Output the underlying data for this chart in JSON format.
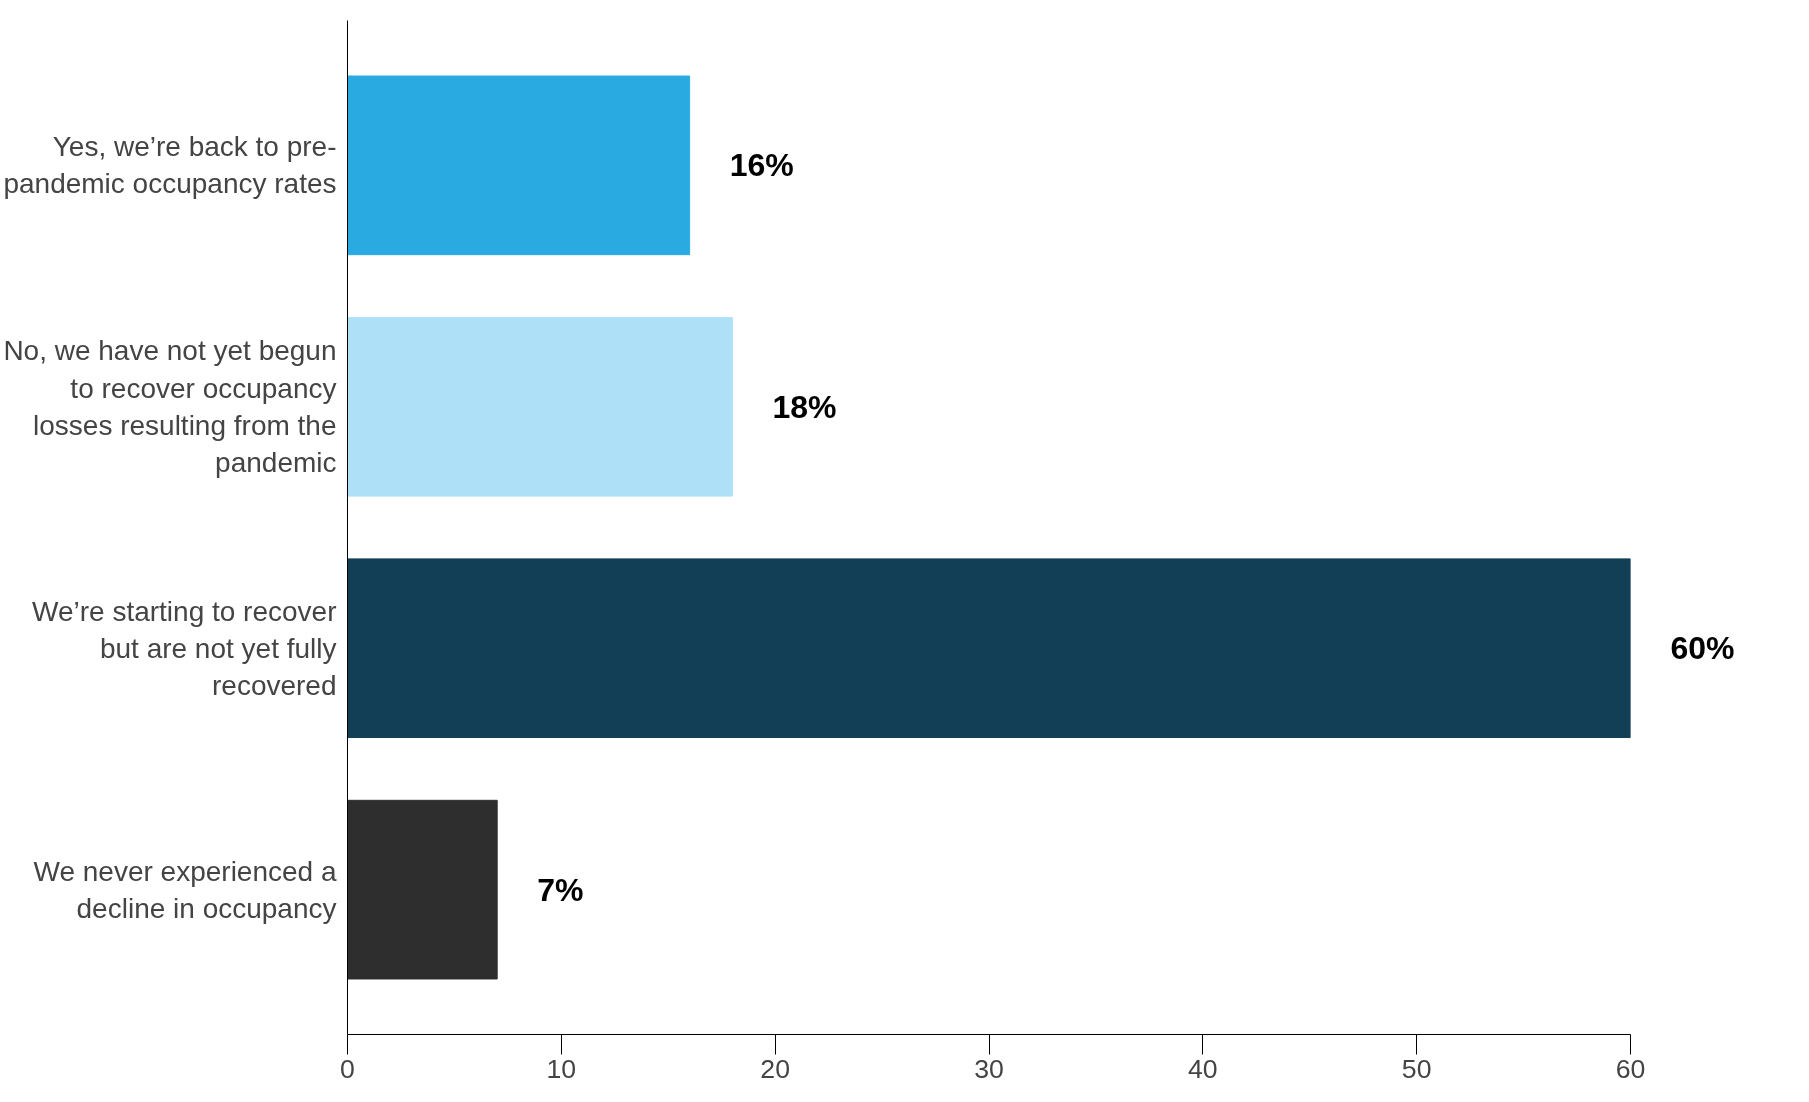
{
  "chart_data": {
    "type": "bar",
    "orientation": "horizontal",
    "categories": [
      "Yes, we’re back to pre-pandemic occupancy rates",
      "No, we have not yet begun to recover occupancy losses resulting from the pandemic",
      "We’re starting to recover but are not yet fully recovered",
      "We never experienced a decline in occupancy"
    ],
    "values": [
      16,
      18,
      60,
      7
    ],
    "colors": [
      "#29abe2",
      "#aee1f8",
      "#133f56",
      "#2e2e2e"
    ],
    "value_labels": [
      "16%",
      "18%",
      "60%",
      "7%"
    ],
    "xlim": [
      0,
      60
    ],
    "xticks": [
      0,
      10,
      20,
      30,
      40,
      50,
      60
    ],
    "grid": false
  }
}
